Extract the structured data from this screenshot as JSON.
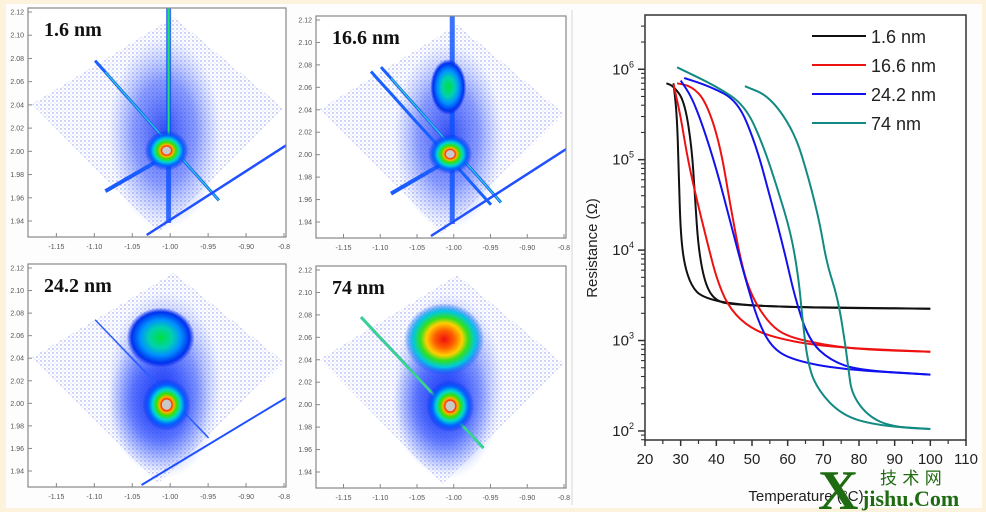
{
  "rsm_panels": [
    {
      "label": "1.6 nm",
      "pattern": "cross-streaks"
    },
    {
      "label": "16.6 nm",
      "pattern": "streaks-with-upper-lobe"
    },
    {
      "label": "24.2 nm",
      "pattern": "two-lobes"
    },
    {
      "label": "74 nm",
      "pattern": "two-lobes-strong-upper"
    }
  ],
  "rsm_axes": {
    "x_ticks": [
      "-1.15",
      "-1.10",
      "-1.05",
      "-1.00",
      "-0.95",
      "-0.90",
      "-0.8"
    ],
    "y_ticks": [
      "2.12",
      "2.10",
      "2.08",
      "2.06",
      "2.04",
      "2.02",
      "2.00",
      "1.98",
      "1.96",
      "1.94"
    ]
  },
  "chart_data": {
    "type": "line",
    "title": "",
    "xlabel": "Temperature (°C)",
    "ylabel": "Resistance (Ω)",
    "xlim": [
      20,
      110
    ],
    "ylim_log10": [
      1.9,
      6.6
    ],
    "yscale": "log",
    "x_ticks": [
      "20",
      "30",
      "40",
      "50",
      "60",
      "70",
      "80",
      "90",
      "100",
      "110"
    ],
    "y_ticks": [
      {
        "base": "10",
        "exp": "6"
      },
      {
        "base": "10",
        "exp": "5"
      },
      {
        "base": "10",
        "exp": "4"
      },
      {
        "base": "10",
        "exp": "3"
      },
      {
        "base": "10",
        "exp": "2"
      }
    ],
    "legend_position": "top-right",
    "series": [
      {
        "name": "1.6 nm",
        "color": "#111111",
        "heating": [
          [
            28,
            700000
          ],
          [
            29,
            300000
          ],
          [
            29.5,
            60000
          ],
          [
            30,
            15000
          ],
          [
            31,
            7000
          ],
          [
            33,
            4000
          ],
          [
            36,
            3000
          ],
          [
            45,
            2500
          ],
          [
            60,
            2350
          ],
          [
            80,
            2300
          ],
          [
            100,
            2250
          ]
        ],
        "cooling": [
          [
            100,
            2250
          ],
          [
            80,
            2280
          ],
          [
            60,
            2350
          ],
          [
            45,
            2500
          ],
          [
            40,
            2700
          ],
          [
            37,
            4000
          ],
          [
            35,
            10000
          ],
          [
            34,
            40000
          ],
          [
            33,
            150000
          ],
          [
            31,
            450000
          ],
          [
            28,
            650000
          ],
          [
            26,
            700000
          ]
        ]
      },
      {
        "name": "16.6 nm",
        "color": "#ee1111",
        "heating": [
          [
            28,
            680000
          ],
          [
            30,
            300000
          ],
          [
            32,
            100000
          ],
          [
            35,
            30000
          ],
          [
            38,
            10000
          ],
          [
            40,
            5000
          ],
          [
            43,
            2500
          ],
          [
            48,
            1500
          ],
          [
            55,
            1100
          ],
          [
            70,
            850
          ],
          [
            100,
            750
          ]
        ],
        "cooling": [
          [
            100,
            750
          ],
          [
            80,
            800
          ],
          [
            70,
            900
          ],
          [
            60,
            1100
          ],
          [
            55,
            1500
          ],
          [
            50,
            3000
          ],
          [
            47,
            7000
          ],
          [
            44,
            30000
          ],
          [
            41,
            150000
          ],
          [
            37,
            450000
          ],
          [
            33,
            650000
          ],
          [
            29,
            700000
          ]
        ]
      },
      {
        "name": "24.2 nm",
        "color": "#1111ee",
        "heating": [
          [
            30,
            750000
          ],
          [
            33,
            500000
          ],
          [
            36,
            250000
          ],
          [
            40,
            80000
          ],
          [
            44,
            20000
          ],
          [
            48,
            5000
          ],
          [
            52,
            1500
          ],
          [
            56,
            800
          ],
          [
            62,
            600
          ],
          [
            75,
            480
          ],
          [
            100,
            420
          ]
        ],
        "cooling": [
          [
            100,
            420
          ],
          [
            80,
            470
          ],
          [
            72,
            600
          ],
          [
            66,
            1000
          ],
          [
            62,
            3000
          ],
          [
            59,
            10000
          ],
          [
            55,
            40000
          ],
          [
            51,
            150000
          ],
          [
            46,
            450000
          ],
          [
            38,
            650000
          ],
          [
            31,
            800000
          ]
        ]
      },
      {
        "name": "74 nm",
        "color": "#128a82",
        "heating": [
          [
            29,
            1050000
          ],
          [
            40,
            650000
          ],
          [
            48,
            400000
          ],
          [
            53,
            150000
          ],
          [
            57,
            50000
          ],
          [
            61,
            15000
          ],
          [
            63,
            5000
          ],
          [
            64,
            2000
          ],
          [
            65.5,
            600
          ],
          [
            68,
            300
          ],
          [
            75,
            150
          ],
          [
            85,
            115
          ],
          [
            100,
            105
          ]
        ],
        "cooling": [
          [
            100,
            105
          ],
          [
            90,
            110
          ],
          [
            83,
            140
          ],
          [
            78,
            250
          ],
          [
            77,
            500
          ],
          [
            76,
            1000
          ],
          [
            74,
            3000
          ],
          [
            71,
            7000
          ],
          [
            69,
            20000
          ],
          [
            66,
            60000
          ],
          [
            62,
            200000
          ],
          [
            55,
            500000
          ],
          [
            48,
            650000
          ]
        ]
      }
    ]
  },
  "watermark": {
    "x": "X",
    "cn": "技 术 网",
    "text": "ishu.Com",
    "prefix": "j"
  }
}
